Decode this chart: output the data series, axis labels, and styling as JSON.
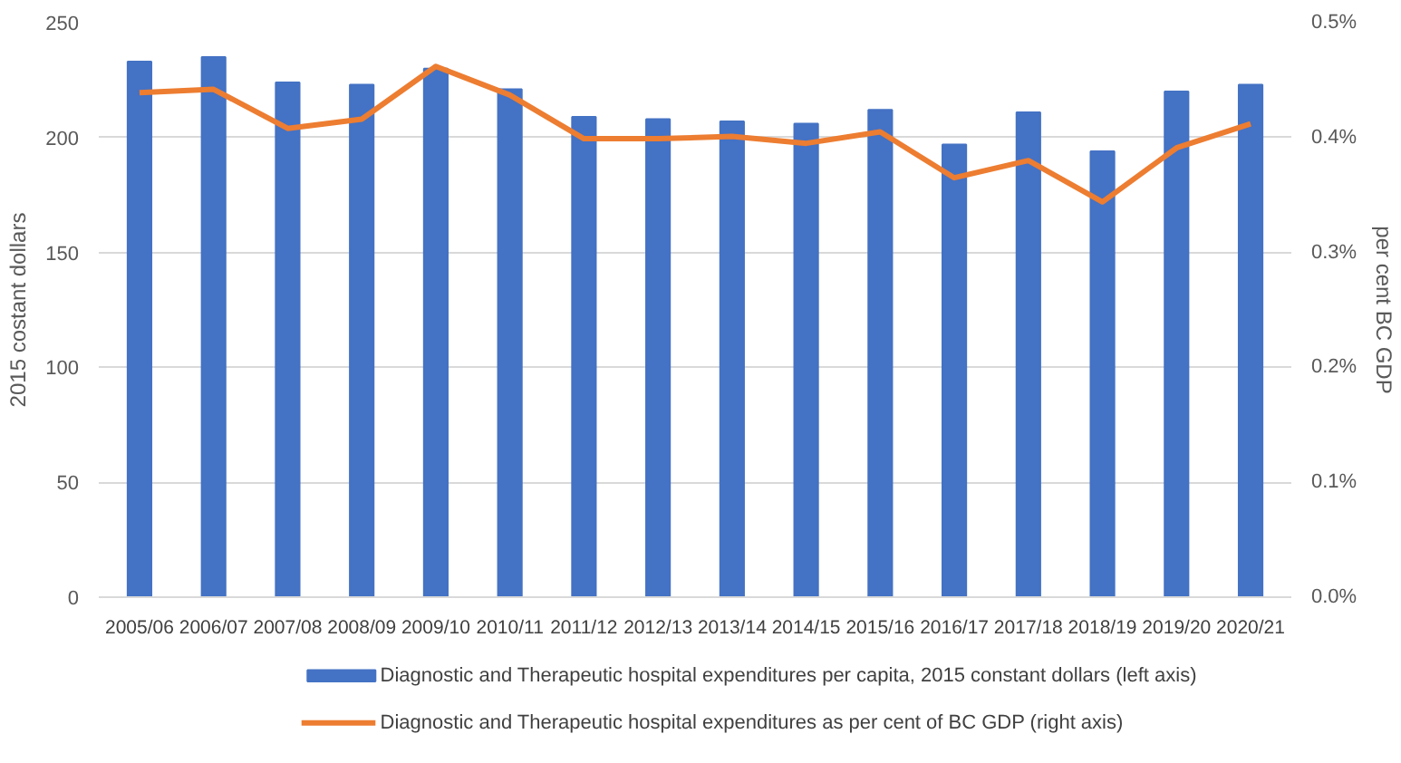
{
  "chart_data": {
    "type": "bar",
    "categories": [
      "2005/06",
      "2006/07",
      "2007/08",
      "2008/09",
      "2009/10",
      "2010/11",
      "2011/12",
      "2012/13",
      "2013/14",
      "2014/15",
      "2015/16",
      "2016/17",
      "2017/18",
      "2018/19",
      "2019/20",
      "2020/21"
    ],
    "series": [
      {
        "name": "Diagnostic and Therapeutic hospital expenditures per capita, 2015 constant dollars (left axis)",
        "color": "#4472c4",
        "values": [
          233,
          235,
          224,
          223,
          230,
          221,
          209,
          208,
          207,
          206,
          212,
          197,
          211,
          194,
          220,
          223
        ]
      },
      {
        "name": "Diagnostic and Therapeutic hospital expenditures as per cent of BC GDP (right axis)",
        "color": "#ed7d31",
        "type": "line",
        "axis": "y2",
        "values": [
          0.439,
          0.442,
          0.408,
          0.416,
          0.462,
          0.437,
          0.399,
          0.399,
          0.401,
          0.395,
          0.405,
          0.365,
          0.38,
          0.344,
          0.391,
          0.412
        ]
      }
    ],
    "ylabel": "2015 costant dollars",
    "y2label": "per cent BC GDP",
    "ylim": [
      0,
      250
    ],
    "yticks": [
      0,
      50,
      100,
      150,
      200,
      250
    ],
    "y2lim": [
      0,
      0.5
    ],
    "y2ticks": [
      {
        "value": 0,
        "label": "0.0%"
      },
      {
        "value": 0.1,
        "label": "0.1%"
      },
      {
        "value": 0.2,
        "label": "0.2%"
      },
      {
        "value": 0.3,
        "label": "0.3%"
      },
      {
        "value": 0.4,
        "label": "0.4%"
      },
      {
        "value": 0.5,
        "label": "0.5%"
      }
    ],
    "grid": "y",
    "legend": "bottom"
  }
}
